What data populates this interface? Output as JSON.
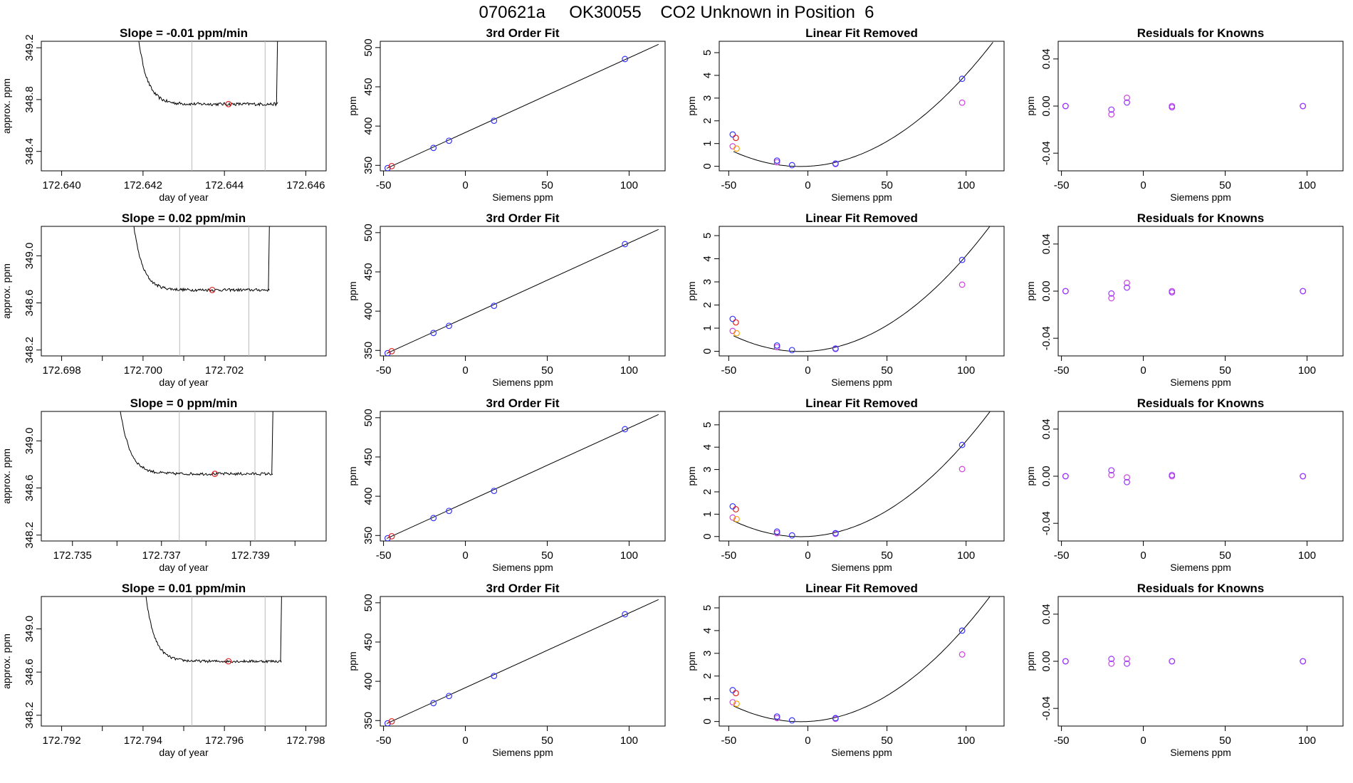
{
  "title": "070621a     OK30055    CO2 Unknown in Position  6",
  "colors": {
    "blue": "#3333ff",
    "red": "#e02020",
    "orange": "#ffa500",
    "violet": "#cc44dd",
    "purple": "#9933ff",
    "line": "#000000",
    "vline": "#bbbbbb"
  },
  "chart_data": [
    {
      "type": "line",
      "title": "Slope =  -0.01  ppm/min",
      "xlabel": "day of year",
      "ylabel": "approx. ppm",
      "xlim": [
        172.6395,
        172.6465
      ],
      "ylim": [
        348.25,
        349.25
      ],
      "xticks": [
        172.64,
        172.642,
        172.644,
        172.646
      ],
      "xtick_labels": [
        "172.640",
        "172.642",
        "172.644",
        "172.646"
      ],
      "yticks": [
        348.4,
        348.8,
        349.2
      ],
      "ytick_labels": [
        "348.4",
        "348.8",
        "349.2"
      ],
      "trace": {
        "x0": 172.6417,
        "x1": 172.6453,
        "level": 348.765,
        "decay_tau": 0.00022,
        "start_excess": 1.2,
        "spike_x": 172.64528,
        "noise": 0.012
      },
      "vlines": [
        172.6432,
        172.645
      ],
      "marker": {
        "x": 172.6441,
        "y": 348.765
      }
    },
    {
      "type": "scatter",
      "title": "3rd Order Fit",
      "xlabel": "Siemens ppm",
      "ylabel": "ppm",
      "xlim": [
        -52,
        122
      ],
      "ylim": [
        343,
        508
      ],
      "xticks": [
        -50,
        0,
        50,
        100
      ],
      "xtick_labels": [
        "-50",
        "0",
        "50",
        "100"
      ],
      "yticks": [
        350,
        400,
        450,
        500
      ],
      "ytick_labels": [
        "350",
        "400",
        "450",
        "500"
      ],
      "fit_line": {
        "x": [
          -48,
          118
        ],
        "y": [
          346.2,
          504.1
        ]
      },
      "points_blue": [
        [
          -47.5,
          346.5
        ],
        [
          -19.5,
          372.2
        ],
        [
          -10,
          381.3
        ],
        [
          17.5,
          406.8
        ],
        [
          97.5,
          485.4
        ]
      ],
      "points_red": [
        [
          -45,
          349.0
        ]
      ]
    },
    {
      "type": "scatter",
      "title": "Linear Fit Removed",
      "xlabel": "Siemens ppm",
      "ylabel": "ppm",
      "xlim": [
        -56,
        124
      ],
      "ylim": [
        -0.2,
        5.5
      ],
      "xticks": [
        -50,
        0,
        50,
        100
      ],
      "xtick_labels": [
        "-50",
        "0",
        "50",
        "100"
      ],
      "yticks": [
        0,
        1,
        2,
        3,
        4,
        5
      ],
      "ytick_labels": [
        "0",
        "1",
        "2",
        "3",
        "4",
        "5"
      ],
      "curve": {
        "a": 0.000369,
        "b": 0.0035,
        "c": 0.0,
        "x_from": -47,
        "x_to": 117
      },
      "points_blue": [
        [
          -47.5,
          1.4
        ],
        [
          -19.5,
          0.25
        ],
        [
          -10,
          0.05
        ],
        [
          17.5,
          0.12
        ],
        [
          97.5,
          3.85
        ]
      ],
      "points_red": [
        [
          -45.5,
          1.25
        ]
      ],
      "points_violet": [
        [
          -47.5,
          0.88
        ],
        [
          -19.5,
          0.18
        ],
        [
          17.5,
          0.1
        ],
        [
          97.5,
          2.8
        ]
      ],
      "points_orange": [
        [
          -45,
          0.78
        ]
      ]
    },
    {
      "type": "scatter",
      "title": "Residuals for Knowns",
      "xlabel": "Siemens ppm",
      "ylabel": "ppm",
      "xlim": [
        -52,
        122
      ],
      "ylim": [
        -0.055,
        0.055
      ],
      "xticks": [
        -50,
        0,
        50,
        100
      ],
      "xtick_labels": [
        "-50",
        "0",
        "50",
        "100"
      ],
      "yticks": [
        -0.04,
        0.0,
        0.04
      ],
      "ytick_labels": [
        "-0.04",
        "0.00",
        "0.04"
      ],
      "points_blue": [
        [
          -47.5,
          0.0
        ],
        [
          -19.5,
          -0.003
        ],
        [
          -10,
          0.003
        ],
        [
          17.5,
          -0.001
        ],
        [
          97.5,
          0.0
        ]
      ],
      "points_violet": [
        [
          -47.5,
          0.0
        ],
        [
          -19.5,
          -0.007
        ],
        [
          -10,
          0.007
        ],
        [
          17.5,
          0.0
        ],
        [
          97.5,
          0.0
        ]
      ]
    },
    {
      "type": "line",
      "title": "Slope =  0.02  ppm/min",
      "xlabel": "day of year",
      "ylabel": "approx. ppm",
      "xlim": [
        172.6975,
        172.7045
      ],
      "ylim": [
        348.15,
        349.25
      ],
      "xticks": [
        172.698,
        172.699,
        172.7,
        172.701,
        172.702,
        172.703
      ],
      "xtick_labels": [
        "172.698",
        "",
        "172.700",
        "",
        "172.702",
        ""
      ],
      "yticks": [
        348.2,
        348.6,
        349.0
      ],
      "ytick_labels": [
        "348.2",
        "348.6",
        "349.0"
      ],
      "trace": {
        "x0": 172.6996,
        "x1": 172.7031,
        "level": 348.71,
        "decay_tau": 0.00022,
        "start_excess": 1.2,
        "spike_x": 172.70308,
        "noise": 0.012
      },
      "vlines": [
        172.7009,
        172.7026
      ],
      "marker": {
        "x": 172.7017,
        "y": 348.71
      }
    },
    {
      "type": "scatter",
      "title": "3rd Order Fit",
      "xlabel": "Siemens ppm",
      "ylabel": "ppm",
      "xlim": [
        -52,
        122
      ],
      "ylim": [
        343,
        508
      ],
      "xticks": [
        -50,
        0,
        50,
        100
      ],
      "xtick_labels": [
        "-50",
        "0",
        "50",
        "100"
      ],
      "yticks": [
        350,
        400,
        450,
        500
      ],
      "ytick_labels": [
        "350",
        "400",
        "450",
        "500"
      ],
      "fit_line": {
        "x": [
          -48,
          118
        ],
        "y": [
          346.2,
          504.1
        ]
      },
      "points_blue": [
        [
          -47.5,
          346.5
        ],
        [
          -19.5,
          372.2
        ],
        [
          -10,
          381.3
        ],
        [
          17.5,
          406.8
        ],
        [
          97.5,
          485.4
        ]
      ],
      "points_red": [
        [
          -45,
          349.0
        ]
      ]
    },
    {
      "type": "scatter",
      "title": "Linear Fit Removed",
      "xlabel": "Siemens ppm",
      "ylabel": "ppm",
      "xlim": [
        -56,
        124
      ],
      "ylim": [
        -0.2,
        5.4
      ],
      "xticks": [
        -50,
        0,
        50,
        100
      ],
      "xtick_labels": [
        "-50",
        "0",
        "50",
        "100"
      ],
      "yticks": [
        0,
        1,
        2,
        3,
        4,
        5
      ],
      "ytick_labels": [
        "0",
        "1",
        "2",
        "3",
        "4",
        "5"
      ],
      "curve": {
        "a": 0.000378,
        "b": 0.0035,
        "c": 0.0,
        "x_from": -47,
        "x_to": 117
      },
      "points_blue": [
        [
          -47.5,
          1.4
        ],
        [
          -19.5,
          0.25
        ],
        [
          -10,
          0.05
        ],
        [
          17.5,
          0.12
        ],
        [
          97.5,
          3.95
        ]
      ],
      "points_red": [
        [
          -45.5,
          1.25
        ]
      ],
      "points_violet": [
        [
          -47.5,
          0.88
        ],
        [
          -19.5,
          0.18
        ],
        [
          17.5,
          0.1
        ],
        [
          97.5,
          2.88
        ]
      ],
      "points_orange": [
        [
          -45,
          0.78
        ]
      ]
    },
    {
      "type": "scatter",
      "title": "Residuals for Knowns",
      "xlabel": "Siemens ppm",
      "ylabel": "ppm",
      "xlim": [
        -52,
        122
      ],
      "ylim": [
        -0.055,
        0.055
      ],
      "xticks": [
        -50,
        0,
        50,
        100
      ],
      "xtick_labels": [
        "-50",
        "0",
        "50",
        "100"
      ],
      "yticks": [
        -0.04,
        0.0,
        0.04
      ],
      "ytick_labels": [
        "-0.04",
        "0.00",
        "0.04"
      ],
      "points_blue": [
        [
          -47.5,
          0.0
        ],
        [
          -19.5,
          -0.002
        ],
        [
          -10,
          0.003
        ],
        [
          17.5,
          -0.001
        ],
        [
          97.5,
          0.0
        ]
      ],
      "points_violet": [
        [
          -47.5,
          0.0
        ],
        [
          -19.5,
          -0.006
        ],
        [
          -10,
          0.007
        ],
        [
          17.5,
          0.0
        ],
        [
          97.5,
          0.0
        ]
      ]
    },
    {
      "type": "line",
      "title": "Slope =  0  ppm/min",
      "xlabel": "day of year",
      "ylabel": "approx. ppm",
      "xlim": [
        172.7343,
        172.7407
      ],
      "ylim": [
        348.15,
        349.25
      ],
      "xticks": [
        172.735,
        172.736,
        172.737,
        172.738,
        172.739,
        172.74
      ],
      "xtick_labels": [
        "172.735",
        "",
        "172.737",
        "",
        "172.739",
        ""
      ],
      "yticks": [
        348.2,
        348.6,
        349.0
      ],
      "ytick_labels": [
        "348.2",
        "348.6",
        "349.0"
      ],
      "trace": {
        "x0": 172.7359,
        "x1": 172.7395,
        "level": 348.72,
        "decay_tau": 0.00022,
        "start_excess": 1.2,
        "spike_x": 172.73948,
        "noise": 0.012
      },
      "vlines": [
        172.7374,
        172.7391
      ],
      "marker": {
        "x": 172.7382,
        "y": 348.72
      }
    },
    {
      "type": "scatter",
      "title": "3rd Order Fit",
      "xlabel": "Siemens ppm",
      "ylabel": "ppm",
      "xlim": [
        -52,
        122
      ],
      "ylim": [
        343,
        508
      ],
      "xticks": [
        -50,
        0,
        50,
        100
      ],
      "xtick_labels": [
        "-50",
        "0",
        "50",
        "100"
      ],
      "yticks": [
        350,
        400,
        450,
        500
      ],
      "ytick_labels": [
        "350",
        "400",
        "450",
        "500"
      ],
      "fit_line": {
        "x": [
          -48,
          118
        ],
        "y": [
          346.2,
          504.1
        ]
      },
      "points_blue": [
        [
          -47.5,
          346.5
        ],
        [
          -19.5,
          372.2
        ],
        [
          -10,
          381.3
        ],
        [
          17.5,
          406.8
        ],
        [
          97.5,
          485.4
        ]
      ],
      "points_red": [
        [
          -45,
          349.0
        ]
      ]
    },
    {
      "type": "scatter",
      "title": "Linear Fit Removed",
      "xlabel": "Siemens ppm",
      "ylabel": "ppm",
      "xlim": [
        -56,
        124
      ],
      "ylim": [
        -0.2,
        5.6
      ],
      "xticks": [
        -50,
        0,
        50,
        100
      ],
      "xtick_labels": [
        "-50",
        "0",
        "50",
        "100"
      ],
      "yticks": [
        0,
        1,
        2,
        3,
        4,
        5
      ],
      "ytick_labels": [
        "0",
        "1",
        "2",
        "3",
        "4",
        "5"
      ],
      "curve": {
        "a": 0.000392,
        "b": 0.0035,
        "c": 0.0,
        "x_from": -47,
        "x_to": 117
      },
      "points_blue": [
        [
          -47.5,
          1.35
        ],
        [
          -19.5,
          0.22
        ],
        [
          -10,
          0.05
        ],
        [
          17.5,
          0.15
        ],
        [
          97.5,
          4.1
        ]
      ],
      "points_red": [
        [
          -45.5,
          1.22
        ]
      ],
      "points_violet": [
        [
          -47.5,
          0.85
        ],
        [
          -19.5,
          0.15
        ],
        [
          17.5,
          0.12
        ],
        [
          97.5,
          3.02
        ]
      ],
      "points_orange": [
        [
          -45,
          0.78
        ]
      ]
    },
    {
      "type": "scatter",
      "title": "Residuals for Knowns",
      "xlabel": "Siemens ppm",
      "ylabel": "ppm",
      "xlim": [
        -52,
        122
      ],
      "ylim": [
        -0.055,
        0.055
      ],
      "xticks": [
        -50,
        0,
        50,
        100
      ],
      "xtick_labels": [
        "-50",
        "0",
        "50",
        "100"
      ],
      "yticks": [
        -0.04,
        0.0,
        0.04
      ],
      "ytick_labels": [
        "-0.04",
        "0.00",
        "0.04"
      ],
      "points_blue": [
        [
          -47.5,
          0.0
        ],
        [
          -19.5,
          0.005
        ],
        [
          -10,
          -0.005
        ],
        [
          17.5,
          0.001
        ],
        [
          97.5,
          0.0
        ]
      ],
      "points_violet": [
        [
          -47.5,
          0.0
        ],
        [
          -19.5,
          0.001
        ],
        [
          -10,
          -0.001
        ],
        [
          17.5,
          0.0
        ],
        [
          97.5,
          0.0
        ]
      ]
    },
    {
      "type": "line",
      "title": "Slope =  0.01  ppm/min",
      "xlabel": "day of year",
      "ylabel": "approx. ppm",
      "xlim": [
        172.7915,
        172.7985
      ],
      "ylim": [
        348.1,
        349.3
      ],
      "xticks": [
        172.792,
        172.793,
        172.794,
        172.795,
        172.796,
        172.797,
        172.798
      ],
      "xtick_labels": [
        "172.792",
        "",
        "172.794",
        "",
        "172.796",
        "",
        "172.798"
      ],
      "yticks": [
        348.2,
        348.6,
        349.0
      ],
      "ytick_labels": [
        "348.2",
        "348.6",
        "349.0"
      ],
      "trace": {
        "x0": 172.7939,
        "x1": 172.7974,
        "level": 348.7,
        "decay_tau": 0.00022,
        "start_excess": 1.3,
        "spike_x": 172.79738,
        "noise": 0.012
      },
      "vlines": [
        172.7952,
        172.797
      ],
      "marker": {
        "x": 172.7961,
        "y": 348.7
      }
    },
    {
      "type": "scatter",
      "title": "3rd Order Fit",
      "xlabel": "Siemens ppm",
      "ylabel": "ppm",
      "xlim": [
        -52,
        122
      ],
      "ylim": [
        343,
        508
      ],
      "xticks": [
        -50,
        0,
        50,
        100
      ],
      "xtick_labels": [
        "-50",
        "0",
        "50",
        "100"
      ],
      "yticks": [
        350,
        400,
        450,
        500
      ],
      "ytick_labels": [
        "350",
        "400",
        "450",
        "500"
      ],
      "fit_line": {
        "x": [
          -48,
          118
        ],
        "y": [
          346.2,
          504.1
        ]
      },
      "points_blue": [
        [
          -47.5,
          346.5
        ],
        [
          -19.5,
          372.2
        ],
        [
          -10,
          381.3
        ],
        [
          17.5,
          406.8
        ],
        [
          97.5,
          485.4
        ]
      ],
      "points_red": [
        [
          -45,
          349.0
        ]
      ]
    },
    {
      "type": "scatter",
      "title": "Linear Fit Removed",
      "xlabel": "Siemens ppm",
      "ylabel": "ppm",
      "xlim": [
        -56,
        124
      ],
      "ylim": [
        -0.2,
        5.5
      ],
      "xticks": [
        -50,
        0,
        50,
        100
      ],
      "xtick_labels": [
        "-50",
        "0",
        "50",
        "100"
      ],
      "yticks": [
        0,
        1,
        2,
        3,
        4,
        5
      ],
      "ytick_labels": [
        "0",
        "1",
        "2",
        "3",
        "4",
        "5"
      ],
      "curve": {
        "a": 0.000385,
        "b": 0.0035,
        "c": 0.0,
        "x_from": -47,
        "x_to": 117
      },
      "points_blue": [
        [
          -47.5,
          1.38
        ],
        [
          -19.5,
          0.22
        ],
        [
          -10,
          0.05
        ],
        [
          17.5,
          0.15
        ],
        [
          97.5,
          4.0
        ]
      ],
      "points_red": [
        [
          -45.5,
          1.25
        ]
      ],
      "points_violet": [
        [
          -47.5,
          0.85
        ],
        [
          -19.5,
          0.15
        ],
        [
          17.5,
          0.12
        ],
        [
          97.5,
          2.95
        ]
      ],
      "points_orange": [
        [
          -45,
          0.78
        ]
      ]
    },
    {
      "type": "scatter",
      "title": "Residuals for Knowns",
      "xlabel": "Siemens ppm",
      "ylabel": "ppm",
      "xlim": [
        -52,
        122
      ],
      "ylim": [
        -0.055,
        0.055
      ],
      "xticks": [
        -50,
        0,
        50,
        100
      ],
      "xtick_labels": [
        "-50",
        "0",
        "50",
        "100"
      ],
      "yticks": [
        -0.04,
        0.0,
        0.04
      ],
      "ytick_labels": [
        "-0.04",
        "0.00",
        "0.04"
      ],
      "points_blue": [
        [
          -47.5,
          0.0
        ],
        [
          -19.5,
          0.002
        ],
        [
          -10,
          -0.002
        ],
        [
          17.5,
          0.0
        ],
        [
          97.5,
          0.0
        ]
      ],
      "points_violet": [
        [
          -47.5,
          0.0
        ],
        [
          -19.5,
          -0.002
        ],
        [
          -10,
          0.002
        ],
        [
          17.5,
          0.0
        ],
        [
          97.5,
          0.0
        ]
      ]
    }
  ]
}
